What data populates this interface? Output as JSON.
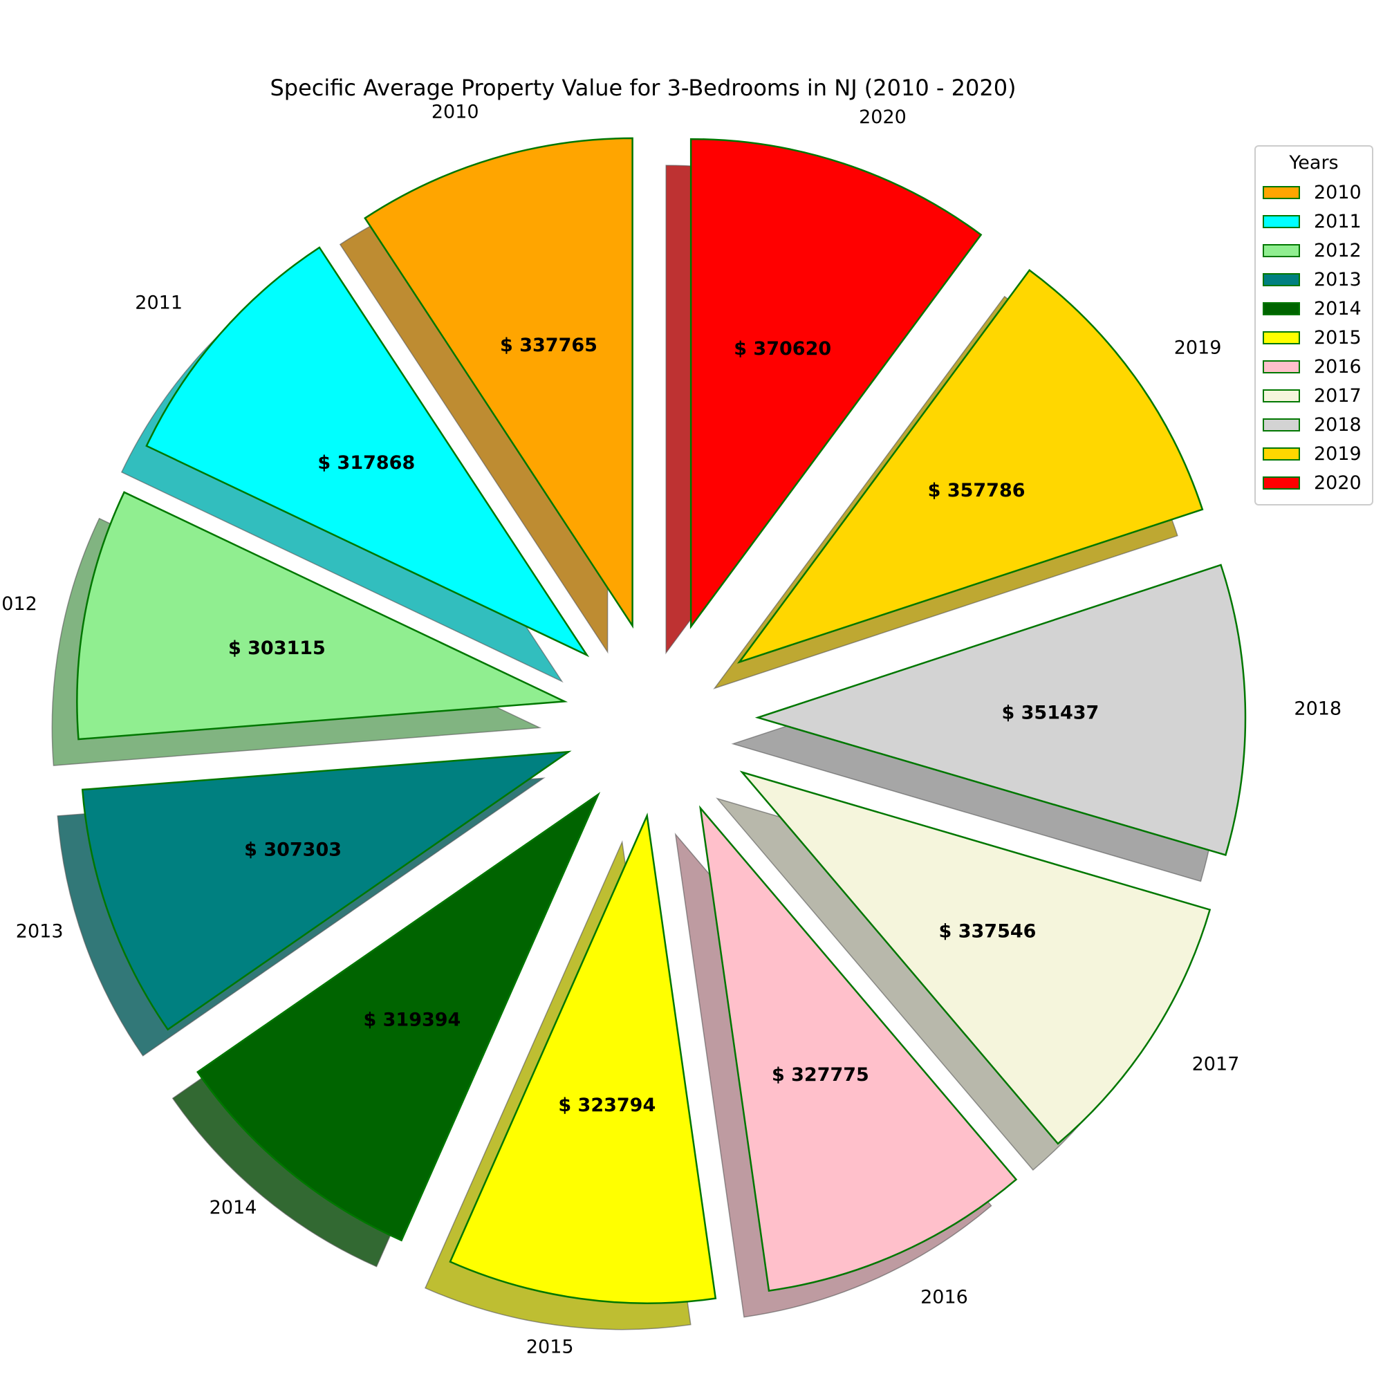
{
  "chart_data": {
    "type": "pie",
    "title": "Specific Average Property Value for 3-Bedrooms in NJ (2010 - 2020)",
    "categories": [
      "2010",
      "2011",
      "2012",
      "2013",
      "2014",
      "2015",
      "2016",
      "2017",
      "2018",
      "2019",
      "2020"
    ],
    "values": [
      337765,
      317868,
      303115,
      307303,
      319394,
      323794,
      327775,
      337546,
      351437,
      357786,
      370620
    ],
    "value_labels": [
      "$ 337765",
      "$ 317868",
      "$ 303115",
      "$ 307303",
      "$ 319394",
      "$ 323794",
      "$ 327775",
      "$ 337546",
      "$ 351437",
      "$ 357786",
      "$ 370620"
    ],
    "colors": [
      "#FFA500",
      "#00FFFF",
      "#90EE90",
      "#008080",
      "#006400",
      "#FFFF00",
      "#FFC0CB",
      "#F5F5DC",
      "#D3D3D3",
      "#FFD700",
      "#FF0000"
    ],
    "edge_color": "#007700",
    "shadow": true,
    "legend": {
      "title": "Years",
      "placement": "top-right",
      "entries": [
        "2010",
        "2011",
        "2012",
        "2013",
        "2014",
        "2015",
        "2016",
        "2017",
        "2018",
        "2019",
        "2020"
      ]
    }
  }
}
